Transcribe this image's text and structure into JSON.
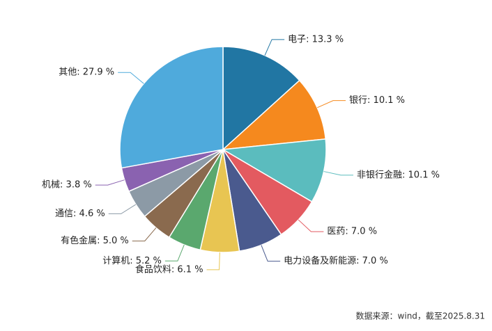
{
  "chart_data": {
    "type": "pie",
    "value_labels": [
      "电子: 13.3 %",
      "银行: 10.1 %",
      "非银行金融: 10.1 %",
      "医药: 7.0 %",
      "电力设备及新能源: 7.0 %",
      "食品饮料: 6.1 %",
      "计算机: 5.2 %",
      "有色金属: 5.0 %",
      "通信: 4.6 %",
      "机械: 3.8 %",
      "其他: 27.9 %"
    ],
    "values": [
      13.3,
      10.1,
      10.1,
      7.0,
      7.0,
      6.1,
      5.2,
      5.0,
      4.6,
      3.8,
      27.9
    ],
    "colors": [
      "#2176a3",
      "#f5891e",
      "#5bbcbe",
      "#e35a60",
      "#4a5a8e",
      "#e8c552",
      "#5aa86e",
      "#8a6a4e",
      "#8c9aa6",
      "#8a62b0",
      "#4faadc"
    ],
    "source": "数据来源：wind，截至2025.8.31"
  }
}
